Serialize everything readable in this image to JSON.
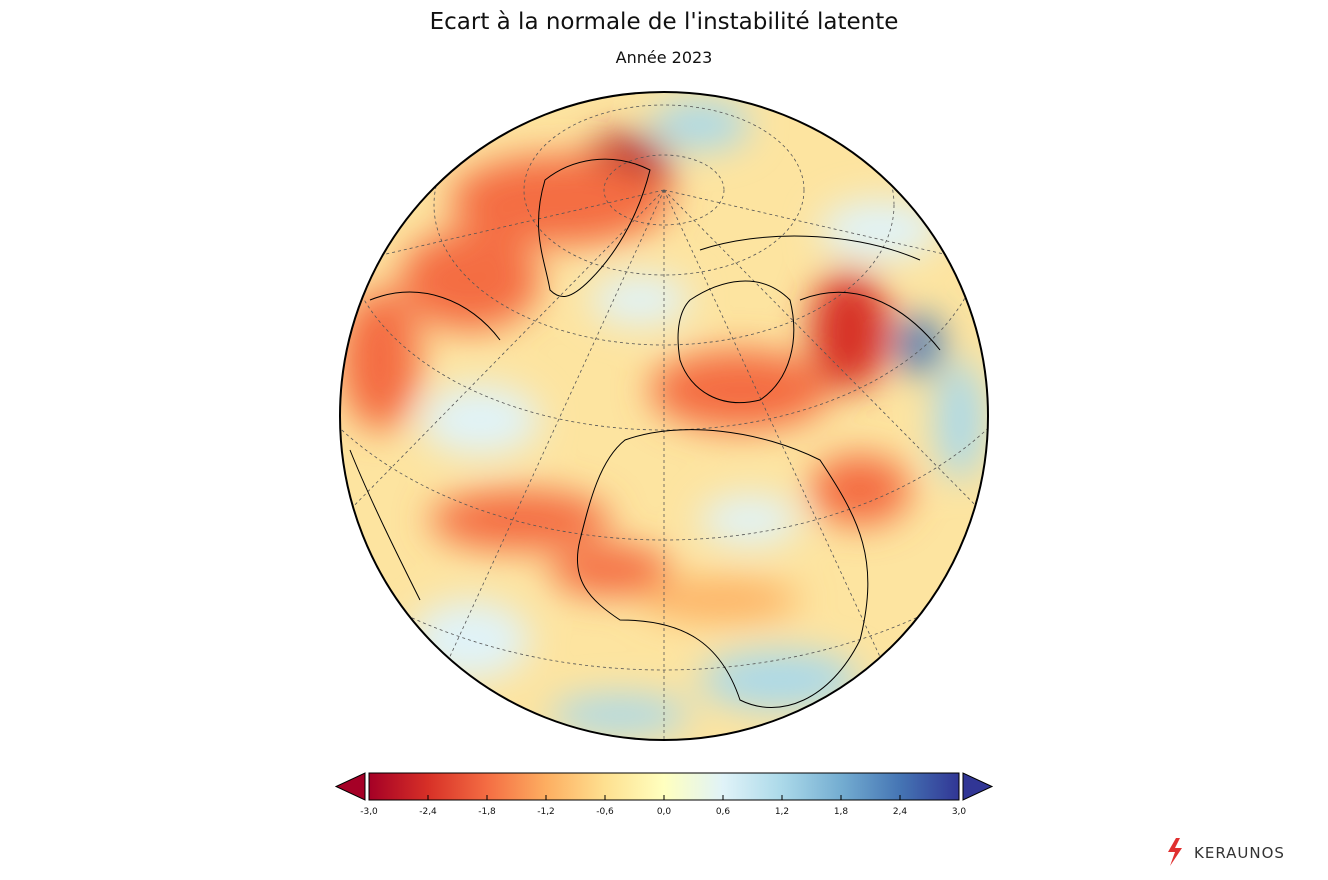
{
  "title": "Ecart à la normale de l'instabilité latente",
  "subtitle": "Année 2023",
  "colorbar": {
    "lim": [
      -3,
      3
    ],
    "ticks": [
      {
        "value": -3,
        "label": "-3,0"
      },
      {
        "value": -2.4,
        "label": "-2,4"
      },
      {
        "value": -1.8,
        "label": "-1,8"
      },
      {
        "value": -1.2,
        "label": "-1,2"
      },
      {
        "value": -0.6,
        "label": "-0,6"
      },
      {
        "value": 0,
        "label": "0,0"
      },
      {
        "value": 0.6,
        "label": "0,6"
      },
      {
        "value": 1.2,
        "label": "1,2"
      },
      {
        "value": 1.8,
        "label": "1,8"
      },
      {
        "value": 2.4,
        "label": "2,4"
      },
      {
        "value": 3,
        "label": "3,0"
      }
    ],
    "colors": [
      "#a50026",
      "#d73027",
      "#f46d43",
      "#fdae61",
      "#fee090",
      "#ffffbf",
      "#e0f3f8",
      "#abd9e9",
      "#74add1",
      "#4575b4",
      "#313695"
    ]
  },
  "brand": "KERAUNOS"
}
